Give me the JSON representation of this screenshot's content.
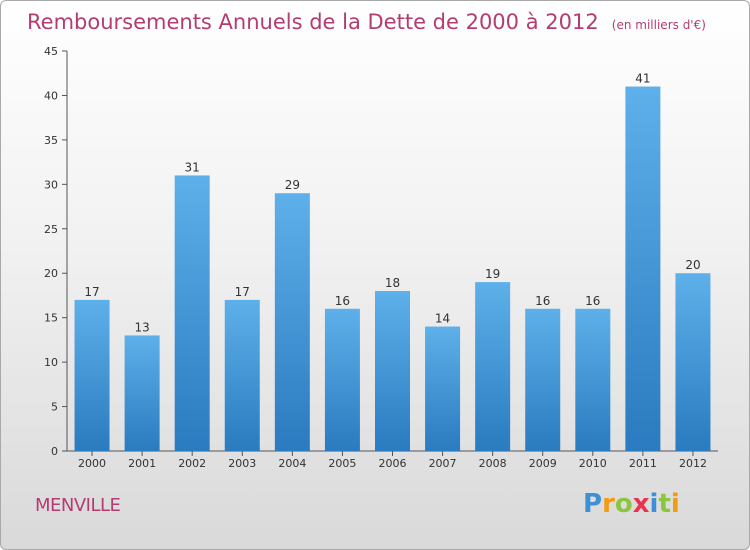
{
  "header": {
    "title": "Remboursements Annuels de la Dette de 2000 à 2012",
    "subtitle": "(en milliers d'€)"
  },
  "footer": {
    "commune": "MENVILLE",
    "logo_text": "Proxiti"
  },
  "colors": {
    "title": "#b43c72",
    "bar_light": "#5eb0ea",
    "bar_dark": "#2a7bbf",
    "grid": "#c9c9c9"
  },
  "chart_data": {
    "type": "bar",
    "title": "Remboursements Annuels de la Dette de 2000 à 2012",
    "subtitle": "(en milliers d'€)",
    "xlabel": "",
    "ylabel": "",
    "categories": [
      "2000",
      "2001",
      "2002",
      "2003",
      "2004",
      "2005",
      "2006",
      "2007",
      "2008",
      "2009",
      "2010",
      "2011",
      "2012"
    ],
    "values": [
      17,
      13,
      31,
      17,
      29,
      16,
      18,
      14,
      19,
      16,
      16,
      41,
      20
    ],
    "ylim": [
      0,
      45
    ],
    "yticks": [
      0,
      5,
      10,
      15,
      20,
      25,
      30,
      35,
      40,
      45
    ],
    "grid": false,
    "data_labels": true
  }
}
